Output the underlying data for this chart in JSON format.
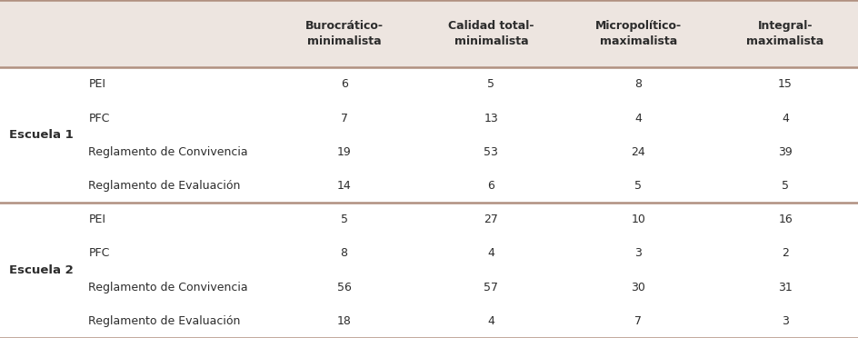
{
  "header_bg": "#ede5e0",
  "body_bg": "#ffffff",
  "text_color": "#2c2c2c",
  "thick_line_color": "#b09080",
  "col_headers": [
    "Burocrático-\nminimalista",
    "Calidad total-\nminimalista",
    "Micropolítico-\nmaximalista",
    "Integral-\nmaximalista"
  ],
  "row_groups": [
    {
      "group_label": "Escuela 1",
      "rows": [
        {
          "label": "PEI",
          "values": [
            6,
            5,
            8,
            15
          ]
        },
        {
          "label": "PFC",
          "values": [
            7,
            13,
            4,
            4
          ]
        },
        {
          "label": "Reglamento de Convivencia",
          "values": [
            19,
            53,
            24,
            39
          ]
        },
        {
          "label": "Reglamento de Evaluación",
          "values": [
            14,
            6,
            5,
            5
          ]
        }
      ]
    },
    {
      "group_label": "Escuela 2",
      "rows": [
        {
          "label": "PEI",
          "values": [
            5,
            27,
            10,
            16
          ]
        },
        {
          "label": "PFC",
          "values": [
            8,
            4,
            3,
            2
          ]
        },
        {
          "label": "Reglamento de Convivencia",
          "values": [
            56,
            57,
            30,
            31
          ]
        },
        {
          "label": "Reglamento de Evaluación",
          "values": [
            18,
            4,
            7,
            3
          ]
        }
      ]
    }
  ],
  "font_size_header": 9,
  "font_size_body": 9,
  "font_size_group": 9.5,
  "figsize": [
    9.45,
    3.72
  ],
  "dpi": 100
}
